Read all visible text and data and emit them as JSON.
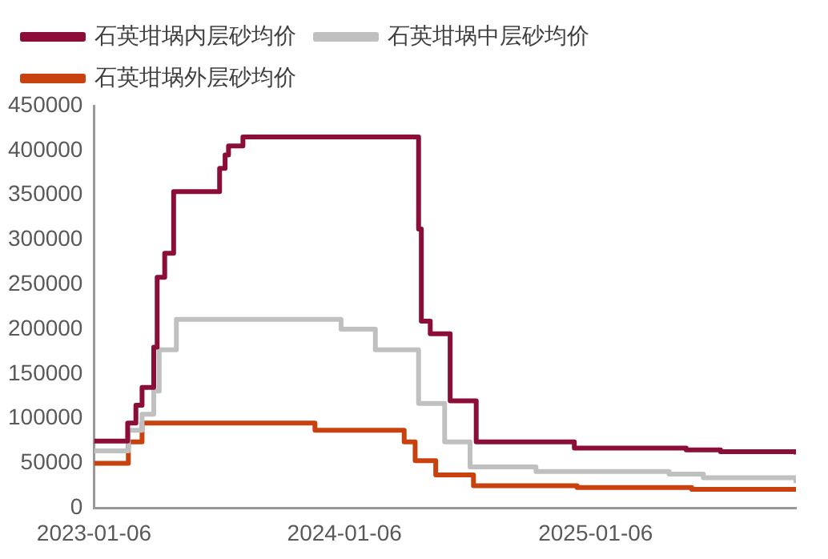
{
  "chart_data": {
    "type": "step",
    "legend": "top left",
    "grid": false,
    "marker": "none",
    "line_style": "solid",
    "xlim": [
      "2023-01-06",
      "2025-10-25"
    ],
    "xticks": [
      "2023-01-06",
      "2024-01-06",
      "2025-01-06"
    ],
    "ylim": [
      0,
      450000
    ],
    "yticks": [
      0,
      50000,
      100000,
      150000,
      200000,
      250000,
      300000,
      350000,
      400000,
      450000
    ],
    "series": [
      {
        "name": "石英坩埚内层砂均价",
        "color": "#8b0d3a",
        "x": [
          "2023-01-06",
          "2023-02-24",
          "2023-03-08",
          "2023-03-17",
          "2023-04-03",
          "2023-04-08",
          "2023-04-19",
          "2023-05-02",
          "2023-07-08",
          "2023-07-16",
          "2023-07-21",
          "2023-08-11",
          "2024-04-23",
          "2024-04-27",
          "2024-05-10",
          "2024-06-08",
          "2024-07-16",
          "2024-12-06",
          "2025-05-18",
          "2025-07-07",
          "2025-10-25"
        ],
        "values": [
          75000,
          95000,
          115000,
          135000,
          180000,
          258000,
          285000,
          354000,
          380000,
          395000,
          405000,
          415000,
          312000,
          209000,
          195000,
          120000,
          74000,
          67000,
          65000,
          63000,
          60000
        ]
      },
      {
        "name": "石英坩埚中层砂均价",
        "color": "#c0c0c0",
        "x": [
          "2023-01-06",
          "2023-02-25",
          "2023-03-17",
          "2023-04-03",
          "2023-04-11",
          "2023-05-06",
          "2024-01-01",
          "2024-02-20",
          "2024-04-23",
          "2024-05-31",
          "2024-07-07",
          "2024-10-11",
          "2025-04-23",
          "2025-06-12",
          "2025-10-25"
        ],
        "values": [
          64000,
          87000,
          105000,
          131000,
          177000,
          211000,
          200000,
          177000,
          117000,
          74000,
          46000,
          41000,
          38000,
          34000,
          28000
        ]
      },
      {
        "name": "石英坩埚外层砂均价",
        "color": "#c8420f",
        "x": [
          "2023-01-06",
          "2023-02-25",
          "2023-03-17",
          "2023-11-24",
          "2024-04-02",
          "2024-04-18",
          "2024-05-18",
          "2024-07-12",
          "2024-12-10",
          "2025-05-26",
          "2025-10-25"
        ],
        "values": [
          50000,
          74000,
          95000,
          87000,
          74000,
          53000,
          37000,
          25000,
          23000,
          21000,
          21000
        ]
      }
    ]
  }
}
